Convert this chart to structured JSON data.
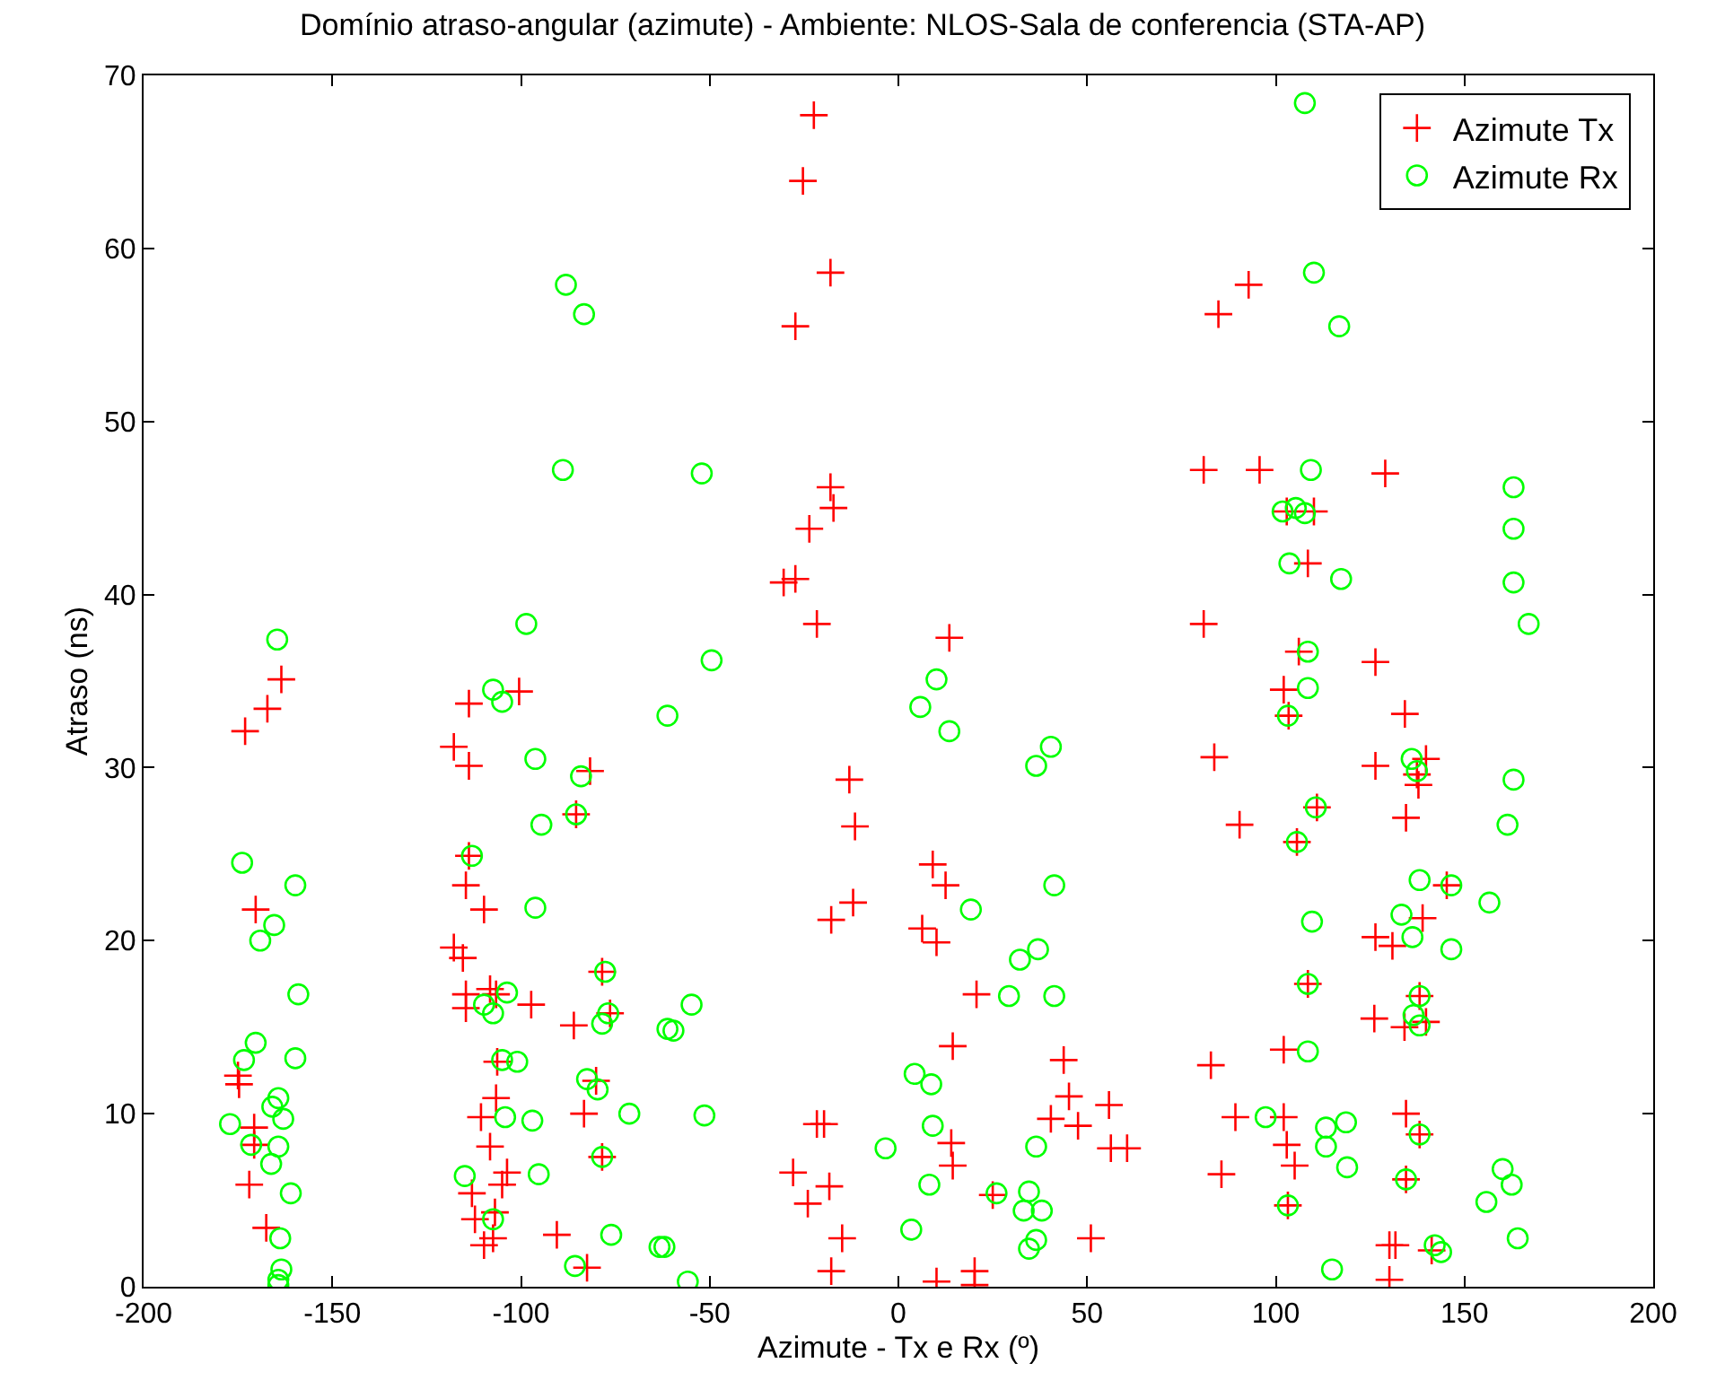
{
  "chart_data": {
    "type": "scatter",
    "title": "Domínio atraso-angular (azimute) - Ambiente: NLOS-Sala de conferencia (STA-AP)",
    "xlabel": "Azimute - Tx e Rx (º)",
    "ylabel": "Atraso (ns)",
    "xlim": [
      -200,
      200
    ],
    "xticks": [
      -200,
      -150,
      -100,
      -50,
      0,
      50,
      100,
      150,
      200
    ],
    "ylim": [
      0,
      70
    ],
    "yticks": [
      0,
      10,
      20,
      30,
      40,
      50,
      60,
      70
    ],
    "grid": false,
    "legend": "top right",
    "series": [
      {
        "name": "Azimute Tx",
        "color": "#ff0000",
        "marker": "cross",
        "x": [
          -163.5,
          -167.2,
          -173.1,
          -170.3,
          -175,
          -174.7,
          -170.7,
          -170.7,
          -172,
          -167.5,
          -113.8,
          -100.5,
          -117.8,
          -113.8,
          -113.8,
          -114.6,
          -109.8,
          -117.8,
          -115.4,
          -114.6,
          -108.2,
          -114.6,
          -106.6,
          -97.3,
          -106.3,
          -106.6,
          -110.6,
          -108.2,
          -103.7,
          -105,
          -113,
          -112.2,
          -106.9,
          -109.8,
          -107.4,
          -81.7,
          -85.4,
          -78.5,
          -76.4,
          -86,
          -80.1,
          -83.3,
          -78.5,
          -90.5,
          -82.5,
          -22.4,
          -25.3,
          -18,
          -27.3,
          -18,
          -17.2,
          -23.6,
          -30.4,
          -27.3,
          -21.6,
          -13,
          -11.5,
          -12,
          -17.8,
          -21.6,
          -19.7,
          -27.9,
          -18.3,
          -24,
          -14.9,
          -17.8,
          13.5,
          9.1,
          12.5,
          6.3,
          10.1,
          20.7,
          14.4,
          43.8,
          45.2,
          40.4,
          55.8,
          47.6,
          56.3,
          60.6,
          14,
          14.4,
          25,
          51,
          10.1,
          20.2,
          20.2,
          92.8,
          84.8,
          80.9,
          95.7,
          129,
          102.9,
          110.1,
          108.5,
          80.9,
          106.1,
          126.4,
          102.1,
          103.4,
          134.2,
          83.7,
          126.4,
          139.8,
          137.4,
          137.8,
          110.9,
          90.4,
          134.5,
          105.6,
          145.3,
          138.9,
          126.4,
          130.9,
          108.5,
          138.1,
          126.1,
          134.1,
          139.8,
          102.1,
          82.8,
          89.3,
          102.1,
          134.5,
          102.9,
          138.1,
          85.6,
          105,
          134.5,
          103.2,
          131.7,
          130.1,
          141.3,
          130.1
        ],
        "values": [
          35.1,
          33.4,
          32.1,
          21.8,
          12.2,
          11.7,
          9.2,
          8.2,
          5.9,
          3.4,
          33.7,
          34.4,
          31.2,
          30.1,
          24.9,
          23.2,
          21.8,
          19.6,
          19.0,
          16.9,
          17.2,
          16.1,
          16.9,
          16.3,
          13.0,
          10.9,
          9.8,
          8.1,
          6.6,
          5.9,
          5.4,
          3.9,
          4.3,
          2.4,
          2.8,
          29.8,
          27.3,
          18.2,
          15.8,
          15.1,
          11.9,
          10.0,
          7.5,
          3.0,
          1.1,
          67.7,
          63.9,
          58.6,
          55.5,
          46.2,
          45.0,
          43.8,
          40.7,
          40.9,
          38.3,
          29.3,
          26.6,
          22.2,
          21.2,
          9.4,
          9.4,
          6.6,
          5.8,
          4.8,
          2.8,
          0.9,
          37.5,
          24.4,
          23.2,
          20.7,
          19.9,
          16.9,
          13.9,
          13.1,
          11.0,
          9.7,
          10.5,
          9.3,
          8.0,
          8.0,
          8.3,
          7.0,
          5.3,
          2.8,
          0.3,
          0.9,
          0.1,
          57.9,
          56.2,
          47.2,
          47.2,
          47.0,
          44.8,
          44.8,
          41.8,
          38.3,
          36.7,
          36.1,
          34.5,
          33.0,
          33.1,
          30.6,
          30.1,
          30.5,
          29.6,
          29.0,
          27.7,
          26.7,
          27.1,
          25.7,
          23.2,
          21.3,
          20.2,
          19.7,
          17.5,
          16.8,
          15.5,
          15.0,
          15.3,
          13.7,
          12.8,
          9.8,
          9.8,
          10.0,
          8.2,
          8.8,
          6.5,
          7.0,
          6.2,
          4.7,
          2.4,
          2.4,
          2.1,
          0.4
        ]
      },
      {
        "name": "Azimute Rx",
        "color": "#00ff00",
        "marker": "circle",
        "x": [
          -164.6,
          -173.9,
          -159.8,
          -165.4,
          -169.1,
          -159,
          -170.3,
          -173.4,
          -159.8,
          -177.1,
          -164.3,
          -165.9,
          -163,
          -171.5,
          -164.3,
          -166.2,
          -161,
          -163.8,
          -163.5,
          -164.3,
          -164.3,
          -98.6,
          -107.4,
          -105,
          -96.2,
          -84.1,
          -85.4,
          -94.6,
          -113,
          -96.2,
          -77.7,
          -103.7,
          -109.8,
          -107.4,
          -76.9,
          -78.5,
          -61.2,
          -101,
          -105,
          -82.5,
          -79.7,
          -71.3,
          -104.2,
          -97,
          -78.5,
          -114.9,
          -95.3,
          -107.4,
          -76.1,
          -63.3,
          -85.7,
          -61.2,
          -88.1,
          -83.3,
          -88.9,
          -52.1,
          -49.5,
          10.1,
          5.8,
          13.5,
          40.4,
          36.5,
          41.3,
          19.2,
          37,
          32.2,
          29.3,
          41.3,
          -54.8,
          -59.6,
          -51.4,
          4.3,
          8.7,
          9.1,
          -3.4,
          8.2,
          3.4,
          36.5,
          26,
          34.6,
          33.2,
          38,
          34.6,
          36.5,
          -62,
          -55.8,
          107.7,
          110.1,
          116.8,
          109.3,
          101.8,
          105.3,
          107.7,
          103.6,
          117.3,
          163,
          163,
          163,
          167,
          108.5,
          108.5,
          103.2,
          136,
          137.4,
          163,
          161.4,
          110.6,
          105.6,
          138.1,
          146.5,
          156.6,
          109.6,
          133.3,
          136.2,
          146.5,
          108.5,
          138.1,
          136.5,
          138.1,
          108.5,
          97.3,
          113.3,
          118.6,
          113.3,
          118.9,
          138.1,
          134.5,
          103.2,
          160.1,
          162.5,
          155.8,
          164.1,
          142.1,
          143.8,
          114.9
        ],
        "values": [
          37.4,
          24.5,
          23.2,
          20.9,
          20.0,
          16.9,
          14.1,
          13.1,
          13.2,
          9.4,
          10.9,
          10.4,
          9.7,
          8.2,
          8.1,
          7.1,
          5.4,
          2.8,
          1.0,
          0.4,
          0.1,
          38.3,
          34.5,
          33.8,
          30.5,
          29.5,
          27.3,
          26.7,
          24.9,
          21.9,
          18.2,
          17.0,
          16.3,
          15.8,
          15.8,
          15.2,
          14.9,
          13.0,
          13.1,
          12.0,
          11.4,
          10.0,
          9.8,
          9.6,
          7.5,
          6.4,
          6.5,
          3.9,
          3.0,
          2.3,
          1.2,
          33.0,
          57.9,
          56.2,
          47.2,
          47.0,
          36.2,
          35.1,
          33.5,
          32.1,
          31.2,
          30.1,
          23.2,
          21.8,
          19.5,
          18.9,
          16.8,
          16.8,
          16.3,
          14.8,
          9.9,
          12.3,
          11.7,
          9.3,
          8.0,
          5.9,
          3.3,
          8.1,
          5.4,
          5.5,
          4.4,
          4.4,
          2.2,
          2.7,
          2.3,
          0.3,
          68.4,
          58.6,
          55.5,
          47.2,
          44.8,
          45.0,
          44.7,
          41.8,
          40.9,
          46.2,
          43.8,
          40.7,
          38.3,
          36.7,
          34.6,
          33.0,
          30.5,
          29.8,
          29.3,
          26.7,
          27.7,
          25.7,
          23.5,
          23.2,
          22.2,
          21.1,
          21.5,
          20.2,
          19.5,
          17.5,
          16.8,
          15.7,
          15.1,
          13.6,
          9.8,
          9.2,
          9.5,
          8.1,
          6.9,
          8.8,
          6.2,
          4.7,
          6.8,
          5.9,
          4.9,
          2.8,
          2.4,
          2.0,
          1.0
        ]
      }
    ]
  }
}
